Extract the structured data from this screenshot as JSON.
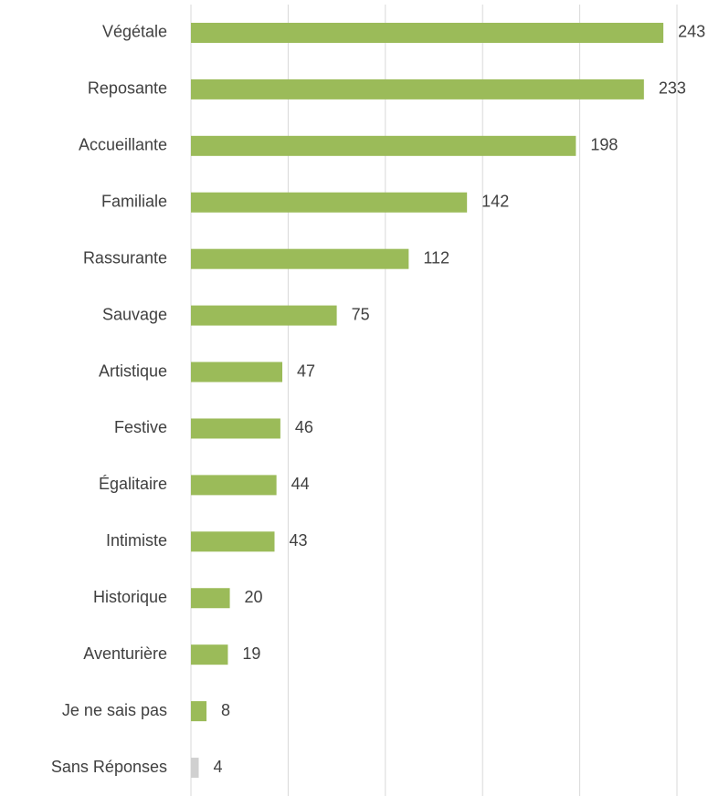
{
  "chart_data": {
    "type": "barh",
    "categories": [
      "Végétale",
      "Reposante",
      "Accueillante",
      "Familiale",
      "Rassurante",
      "Sauvage",
      "Artistique",
      "Festive",
      "Égalitaire",
      "Intimiste",
      "Historique",
      "Aventurière",
      "Je ne sais pas",
      "Sans Réponses"
    ],
    "values": [
      243,
      233,
      198,
      142,
      112,
      75,
      47,
      46,
      44,
      43,
      20,
      19,
      8,
      4
    ],
    "colors": [
      "#9bbb59",
      "#9bbb59",
      "#9bbb59",
      "#9bbb59",
      "#9bbb59",
      "#9bbb59",
      "#9bbb59",
      "#9bbb59",
      "#9bbb59",
      "#9bbb59",
      "#9bbb59",
      "#9bbb59",
      "#9bbb59",
      "#d0d0d0"
    ],
    "xlim": [
      0,
      250
    ],
    "xticks": [
      0,
      50,
      100,
      150,
      200,
      250
    ],
    "grid": true
  }
}
